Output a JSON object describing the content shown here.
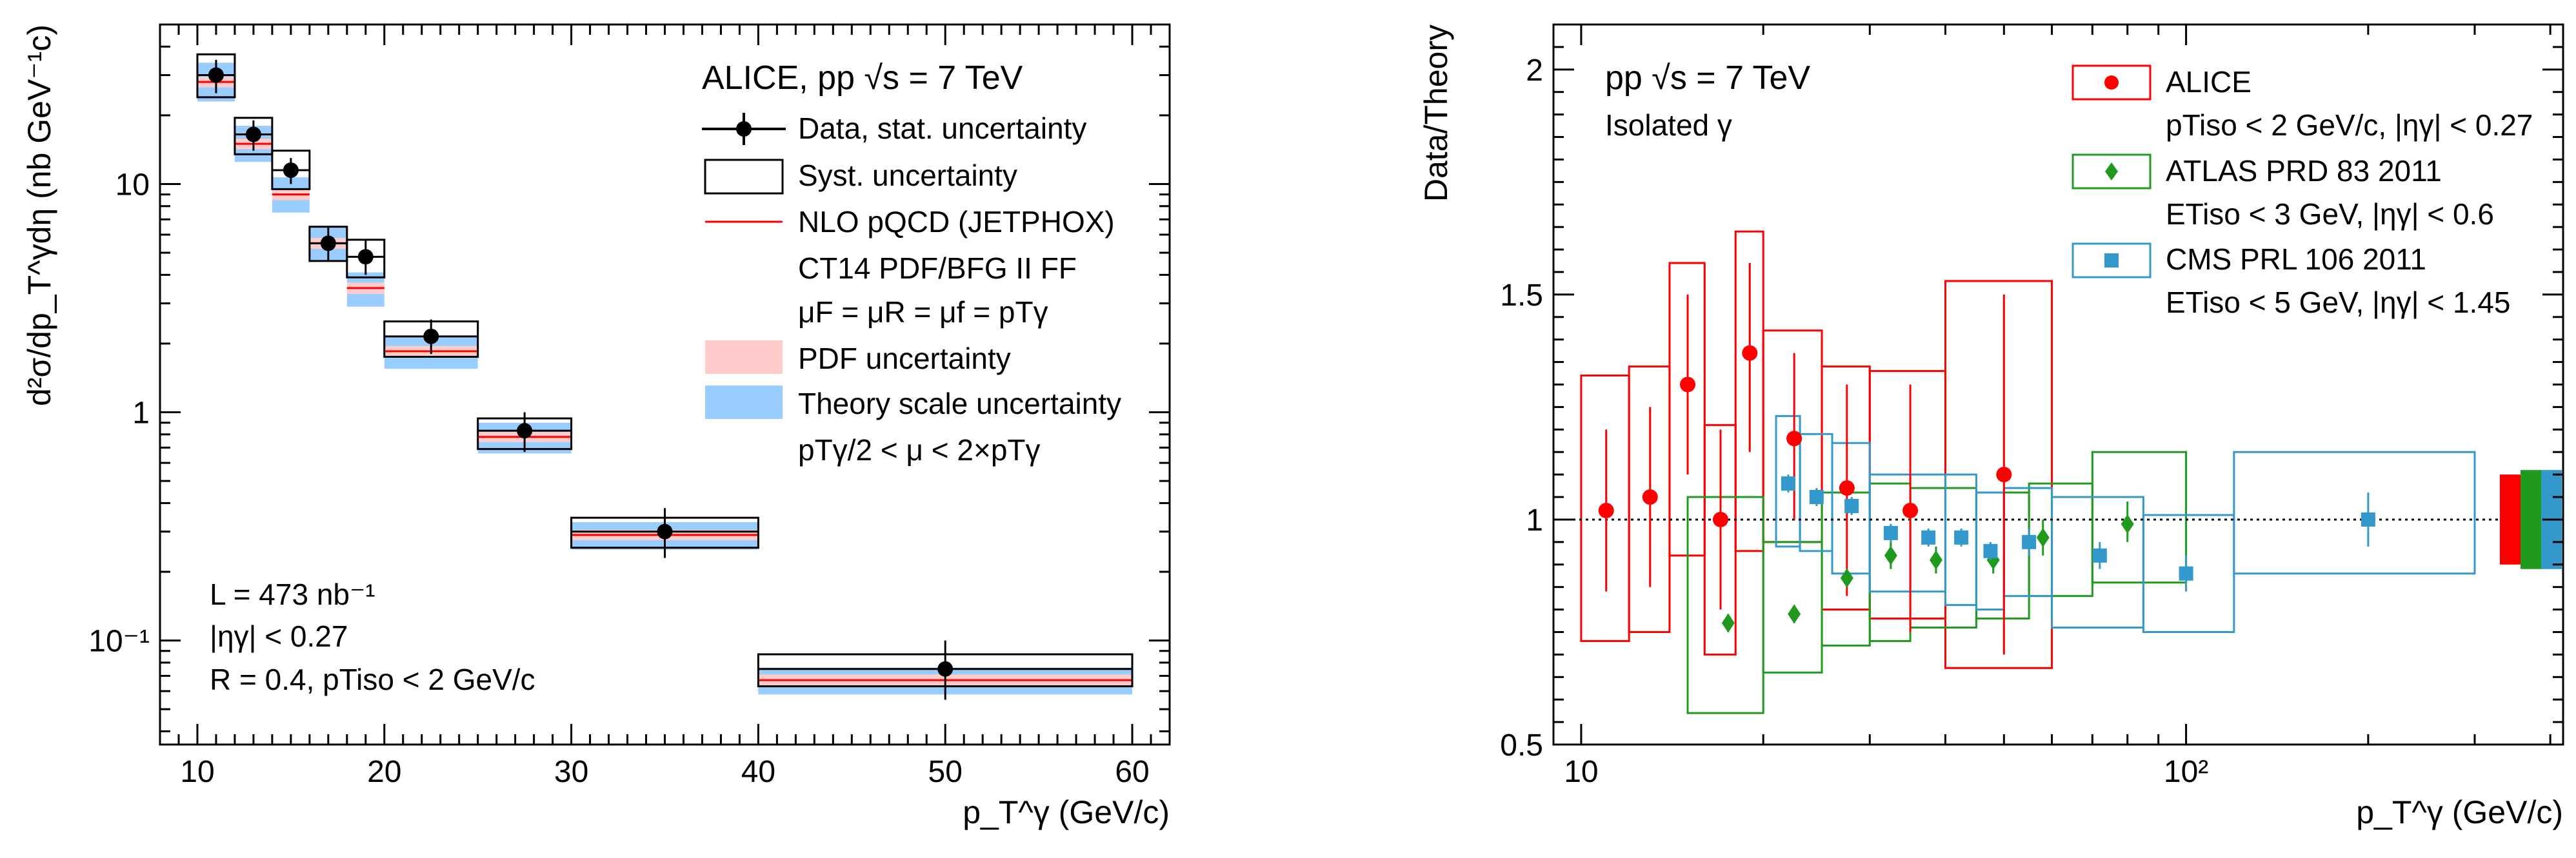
{
  "chart_data": [
    {
      "type": "scatter",
      "title": "ALICE, pp √s = 7 TeV",
      "xlabel": "p_T^γ (GeV/c)",
      "ylabel": "d²σ/dp_T^γdη (nb GeV⁻¹c)",
      "xlim": [
        8,
        62
      ],
      "ylim": [
        0.035,
        50
      ],
      "yscale": "log",
      "x_ticks": [
        10,
        20,
        30,
        40,
        50,
        60
      ],
      "y_ticks": [
        {
          "value": 0.1,
          "label": "10⁻¹"
        },
        {
          "value": 1,
          "label": "1"
        },
        {
          "value": 10,
          "label": "10"
        }
      ],
      "legend": [
        "Data, stat. uncertainty",
        "Syst. uncertainty",
        "NLO pQCD (JETPHOX)",
        "CT14 PDF/BFG II FF",
        "μF = μR = μf = pTγ",
        "PDF uncertainty",
        "Theory scale uncertainty",
        "pTγ/2 < μ < 2×pTγ"
      ],
      "annotations": [
        "L = 473 nb⁻¹",
        "|ηγ| < 0.27",
        "R = 0.4, pTiso < 2 GeV/c"
      ],
      "series": [
        {
          "name": "Data",
          "points": [
            {
              "x": 11,
              "xlo": 10,
              "xhi": 12,
              "y": 30,
              "stat": [
                25,
                35
              ],
              "syst": [
                24,
                37
              ]
            },
            {
              "x": 13,
              "xlo": 12,
              "xhi": 14,
              "y": 16.5,
              "stat": [
                14,
                19
              ],
              "syst": [
                13.5,
                19.5
              ]
            },
            {
              "x": 15,
              "xlo": 14,
              "xhi": 16,
              "y": 11.5,
              "stat": [
                10,
                13
              ],
              "syst": [
                9.5,
                14
              ]
            },
            {
              "x": 17,
              "xlo": 16,
              "xhi": 18,
              "y": 5.5,
              "stat": [
                4.6,
                6.5
              ],
              "syst": [
                4.6,
                6.5
              ]
            },
            {
              "x": 19,
              "xlo": 18,
              "xhi": 20,
              "y": 4.8,
              "stat": [
                4.0,
                5.7
              ],
              "syst": [
                3.9,
                5.7
              ]
            },
            {
              "x": 22.5,
              "xlo": 20,
              "xhi": 25,
              "y": 2.15,
              "stat": [
                1.8,
                2.55
              ],
              "syst": [
                1.75,
                2.5
              ]
            },
            {
              "x": 27.5,
              "xlo": 25,
              "xhi": 30,
              "y": 0.83,
              "stat": [
                0.67,
                1.0
              ],
              "syst": [
                0.69,
                0.94
              ]
            },
            {
              "x": 35,
              "xlo": 30,
              "xhi": 40,
              "y": 0.3,
              "stat": [
                0.23,
                0.38
              ],
              "syst": [
                0.255,
                0.345
              ]
            },
            {
              "x": 50,
              "xlo": 40,
              "xhi": 60,
              "y": 0.075,
              "stat": [
                0.055,
                0.1
              ],
              "syst": [
                0.063,
                0.087
              ]
            }
          ]
        },
        {
          "name": "NLO pQCD (JETPHOX)",
          "bins": [
            {
              "xlo": 10,
              "xhi": 12,
              "y": 28,
              "pdf": [
                26.5,
                29.5
              ],
              "scale": [
                23,
                34
              ]
            },
            {
              "xlo": 12,
              "xhi": 14,
              "y": 15,
              "pdf": [
                14.2,
                15.8
              ],
              "scale": [
                12.5,
                18
              ]
            },
            {
              "xlo": 14,
              "xhi": 16,
              "y": 9,
              "pdf": [
                8.5,
                9.5
              ],
              "scale": [
                7.5,
                10.7
              ]
            },
            {
              "xlo": 16,
              "xhi": 18,
              "y": 5.5,
              "pdf": [
                5.2,
                5.8
              ],
              "scale": [
                4.6,
                6.5
              ]
            },
            {
              "xlo": 18,
              "xhi": 20,
              "y": 3.5,
              "pdf": [
                3.3,
                3.7
              ],
              "scale": [
                2.9,
                4.1
              ]
            },
            {
              "xlo": 20,
              "xhi": 25,
              "y": 1.85,
              "pdf": [
                1.75,
                1.95
              ],
              "scale": [
                1.55,
                2.15
              ]
            },
            {
              "xlo": 25,
              "xhi": 30,
              "y": 0.78,
              "pdf": [
                0.74,
                0.82
              ],
              "scale": [
                0.66,
                0.9
              ]
            },
            {
              "xlo": 30,
              "xhi": 40,
              "y": 0.29,
              "pdf": [
                0.275,
                0.305
              ],
              "scale": [
                0.25,
                0.33
              ]
            },
            {
              "xlo": 40,
              "xhi": 60,
              "y": 0.067,
              "pdf": [
                0.063,
                0.071
              ],
              "scale": [
                0.058,
                0.076
              ]
            }
          ]
        }
      ]
    },
    {
      "type": "scatter",
      "title": "pp √s = 7 TeV",
      "subtitle": "Isolated γ",
      "xlabel": "p_T^γ (GeV/c)",
      "ylabel": "Data/Theory",
      "xscale": "log",
      "xlim": [
        9,
        420
      ],
      "ylim": [
        0.5,
        2.1
      ],
      "x_ticks": [
        {
          "value": 10,
          "label": "10"
        },
        {
          "value": 100,
          "label": "10²"
        }
      ],
      "y_ticks": [
        0.5,
        1,
        1.5,
        2
      ],
      "reference_line": 1,
      "legend": [
        "ALICE",
        "pTiso < 2 GeV/c, |ηγ| < 0.27",
        "ATLAS PRD 83 2011",
        "ETiso < 3 GeV, |ηγ| < 0.6",
        "CMS PRL 106 2011",
        "ETiso < 5 GeV, |ηγ| < 1.45"
      ],
      "series": [
        {
          "name": "ALICE",
          "color": "#ff0000",
          "marker": "circle",
          "points": [
            {
              "xlo": 10,
              "xhi": 12,
              "x": 11,
              "y": 1.02,
              "stat": [
                0.84,
                1.2
              ],
              "syst": [
                0.73,
                1.32
              ]
            },
            {
              "xlo": 12,
              "xhi": 14,
              "x": 13,
              "y": 1.05,
              "stat": [
                0.85,
                1.25
              ],
              "syst": [
                0.75,
                1.34
              ]
            },
            {
              "xlo": 14,
              "xhi": 16,
              "x": 15,
              "y": 1.3,
              "stat": [
                1.1,
                1.5
              ],
              "syst": [
                0.92,
                1.57
              ]
            },
            {
              "xlo": 16,
              "xhi": 18,
              "x": 17,
              "y": 1.0,
              "stat": [
                0.8,
                1.2
              ],
              "syst": [
                0.7,
                1.21
              ]
            },
            {
              "xlo": 18,
              "xhi": 20,
              "x": 19,
              "y": 1.37,
              "stat": [
                1.15,
                1.57
              ],
              "syst": [
                0.93,
                1.64
              ]
            },
            {
              "xlo": 20,
              "xhi": 25,
              "x": 22.5,
              "y": 1.18,
              "stat": [
                1.0,
                1.37
              ],
              "syst": [
                0.95,
                1.42
              ]
            },
            {
              "xlo": 25,
              "xhi": 30,
              "x": 27.5,
              "y": 1.07,
              "stat": [
                0.83,
                1.3
              ],
              "syst": [
                0.8,
                1.34
              ]
            },
            {
              "xlo": 30,
              "xhi": 40,
              "x": 35,
              "y": 1.02,
              "stat": [
                0.75,
                1.3
              ],
              "syst": [
                0.78,
                1.33
              ]
            },
            {
              "xlo": 40,
              "xhi": 60,
              "x": 50,
              "y": 1.1,
              "stat": [
                0.7,
                1.5
              ],
              "syst": [
                0.67,
                1.53
              ]
            }
          ]
        },
        {
          "name": "ATLAS PRD 83 2011",
          "color": "#1f9a1f",
          "marker": "diamond",
          "points": [
            {
              "xlo": 15,
              "xhi": 20,
              "x": 17.5,
              "y": 0.77,
              "stat": [
                0.75,
                0.79
              ],
              "syst": [
                0.57,
                1.05
              ]
            },
            {
              "xlo": 20,
              "xhi": 25,
              "x": 22.5,
              "y": 0.79,
              "stat": [
                0.77,
                0.81
              ],
              "syst": [
                0.66,
                0.95
              ]
            },
            {
              "xlo": 25,
              "xhi": 30,
              "x": 27.5,
              "y": 0.87,
              "stat": [
                0.85,
                0.89
              ],
              "syst": [
                0.72,
                1.06
              ]
            },
            {
              "xlo": 30,
              "xhi": 35,
              "x": 32.5,
              "y": 0.92,
              "stat": [
                0.89,
                0.95
              ],
              "syst": [
                0.73,
                1.08
              ]
            },
            {
              "xlo": 35,
              "xhi": 45,
              "x": 38.6,
              "y": 0.91,
              "stat": [
                0.88,
                0.94
              ],
              "syst": [
                0.76,
                1.07
              ]
            },
            {
              "xlo": 45,
              "xhi": 55,
              "x": 48,
              "y": 0.91,
              "stat": [
                0.88,
                0.94
              ],
              "syst": [
                0.78,
                1.06
              ]
            },
            {
              "xlo": 55,
              "xhi": 70,
              "x": 58,
              "y": 0.96,
              "stat": [
                0.92,
                1.0
              ],
              "syst": [
                0.83,
                1.08
              ]
            },
            {
              "xlo": 70,
              "xhi": 100,
              "x": 80,
              "y": 0.99,
              "stat": [
                0.95,
                1.04
              ],
              "syst": [
                0.86,
                1.15
              ]
            }
          ]
        },
        {
          "name": "CMS PRL 106 2011",
          "color": "#3399cc",
          "marker": "square",
          "points": [
            {
              "xlo": 21,
              "xhi": 23,
              "x": 22,
              "y": 1.08,
              "stat": [
                1.06,
                1.1
              ],
              "syst": [
                0.94,
                1.23
              ]
            },
            {
              "xlo": 23,
              "xhi": 26,
              "x": 24.5,
              "y": 1.05,
              "stat": [
                1.03,
                1.07
              ],
              "syst": [
                0.93,
                1.19
              ]
            },
            {
              "xlo": 26,
              "xhi": 30,
              "x": 28,
              "y": 1.03,
              "stat": [
                1.01,
                1.05
              ],
              "syst": [
                0.88,
                1.17
              ]
            },
            {
              "xlo": 30,
              "xhi": 35,
              "x": 32.5,
              "y": 0.97,
              "stat": [
                0.95,
                0.99
              ],
              "syst": [
                0.84,
                1.1
              ]
            },
            {
              "xlo": 35,
              "xhi": 40,
              "x": 37.5,
              "y": 0.96,
              "stat": [
                0.94,
                0.98
              ],
              "syst": [
                0.84,
                1.1
              ]
            },
            {
              "xlo": 40,
              "xhi": 45,
              "x": 42.5,
              "y": 0.96,
              "stat": [
                0.94,
                0.98
              ],
              "syst": [
                0.81,
                1.1
              ]
            },
            {
              "xlo": 45,
              "xhi": 50,
              "x": 47.5,
              "y": 0.93,
              "stat": [
                0.91,
                0.95
              ],
              "syst": [
                0.8,
                1.06
              ]
            },
            {
              "xlo": 50,
              "xhi": 60,
              "x": 55,
              "y": 0.95,
              "stat": [
                0.92,
                0.98
              ],
              "syst": [
                0.83,
                1.07
              ]
            },
            {
              "xlo": 60,
              "xhi": 85,
              "x": 72,
              "y": 0.92,
              "stat": [
                0.89,
                0.95
              ],
              "syst": [
                0.76,
                1.05
              ]
            },
            {
              "xlo": 85,
              "xhi": 120,
              "x": 100,
              "y": 0.88,
              "stat": [
                0.84,
                0.92
              ],
              "syst": [
                0.75,
                1.01
              ]
            },
            {
              "xlo": 120,
              "xhi": 300,
              "x": 200,
              "y": 1.0,
              "stat": [
                0.94,
                1.06
              ],
              "syst": [
                0.88,
                1.15
              ]
            }
          ]
        }
      ],
      "normalization_bands": [
        {
          "name": "ALICE",
          "color": "#ff0000",
          "range": [
            0.9,
            1.1
          ]
        },
        {
          "name": "ATLAS",
          "color": "#1f9a1f",
          "range": [
            0.89,
            1.11
          ]
        },
        {
          "name": "CMS",
          "color": "#3399cc",
          "range": [
            0.89,
            1.11
          ]
        }
      ]
    }
  ]
}
